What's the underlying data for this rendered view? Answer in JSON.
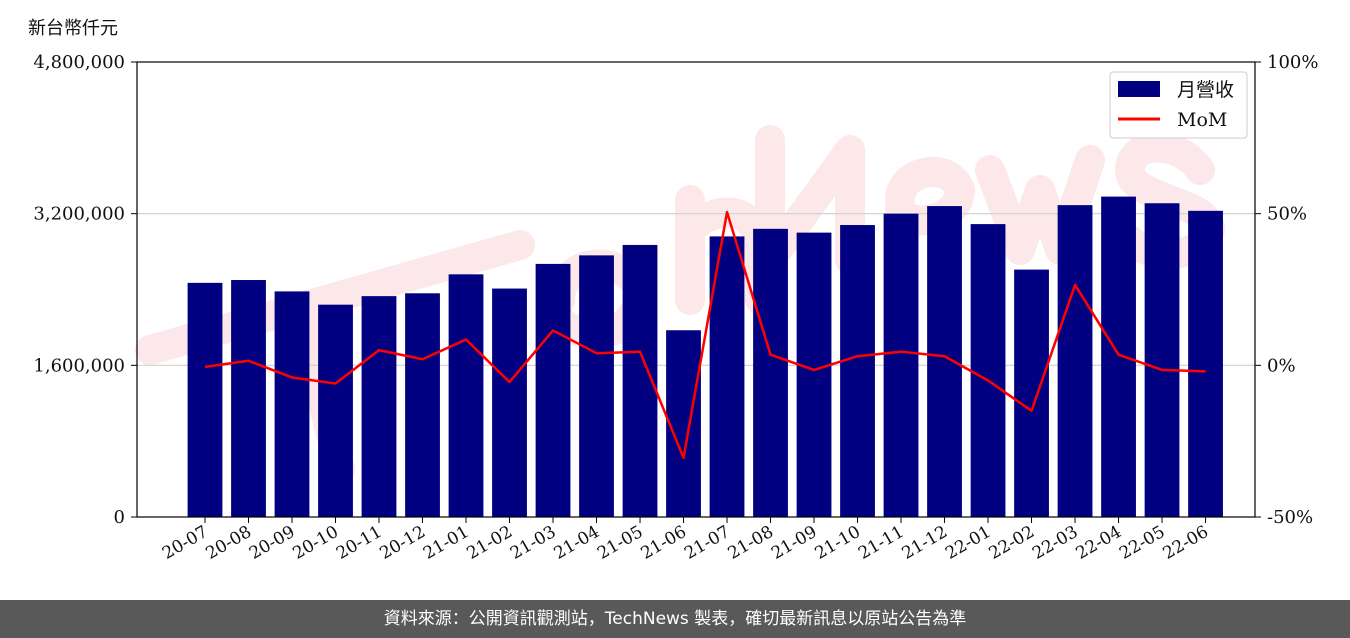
{
  "chart_data": {
    "type": "bar",
    "y_unit": "新台幣仟元",
    "categories": [
      "20-07",
      "20-08",
      "20-09",
      "20-10",
      "20-11",
      "20-12",
      "21-01",
      "21-02",
      "21-03",
      "21-04",
      "21-05",
      "21-06",
      "21-07",
      "21-08",
      "21-09",
      "21-10",
      "21-11",
      "21-12",
      "22-01",
      "22-02",
      "22-03",
      "22-04",
      "22-05",
      "22-06"
    ],
    "series": [
      {
        "name": "月營收",
        "type": "bar",
        "axis": "left",
        "color": "#000080",
        "values": [
          2470000,
          2500000,
          2380000,
          2240000,
          2330000,
          2360000,
          2560000,
          2410000,
          2670000,
          2760000,
          2870000,
          1970000,
          2960000,
          3040000,
          3000000,
          3080000,
          3200000,
          3280000,
          3090000,
          2610000,
          3290000,
          3380000,
          3310000,
          3230000
        ]
      },
      {
        "name": "MoM",
        "type": "line",
        "axis": "right",
        "color": "#ff0000",
        "values": [
          -0.5,
          1.5,
          -4,
          -6,
          5,
          2,
          8.5,
          -5.5,
          11.5,
          4,
          4.5,
          -30.5,
          50.5,
          3.5,
          -1.5,
          3,
          4.5,
          3,
          -5,
          -15,
          26.5,
          3.5,
          -1.5,
          -2
        ]
      }
    ],
    "y_left": {
      "lim": [
        0,
        4800000
      ],
      "ticks": [
        "0",
        "1,600,000",
        "3,200,000",
        "4,800,000"
      ]
    },
    "y_right": {
      "lim": [
        -50,
        100
      ],
      "ticks": [
        "-50%",
        "0%",
        "50%",
        "100%"
      ]
    },
    "grid": "horizontal",
    "legend": "top-right"
  },
  "footer": {
    "source": "資料來源：公開資訊觀測站，TechNews 製表，確切最新訊息以原站公告為準"
  }
}
